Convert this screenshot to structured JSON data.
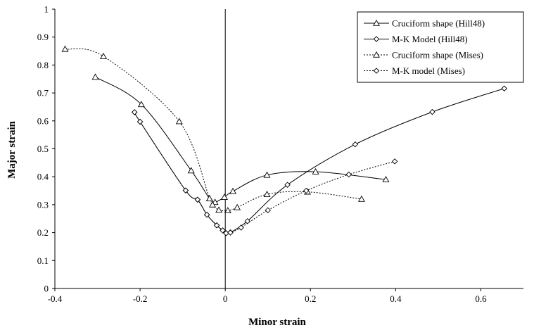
{
  "chart_data": {
    "type": "line",
    "title": "",
    "xlabel": "Minor strain",
    "ylabel": "Major strain",
    "xlim": [
      -0.4,
      0.7
    ],
    "ylim": [
      0,
      1
    ],
    "x_ticks": [
      "-0.4",
      "-0.2",
      "0",
      "0.2",
      "0.4",
      "0.6"
    ],
    "y_ticks": [
      "0",
      "0.1",
      "0.2",
      "0.3",
      "0.4",
      "0.5",
      "0.6",
      "0.7",
      "0.8",
      "0.9",
      "1"
    ],
    "grid": false,
    "legend_position": "top-right",
    "series": [
      {
        "name": "Cruciform shape (Hill48)",
        "line": "solid",
        "marker": "triangle",
        "points": [
          [
            -0.305,
            0.757
          ],
          [
            -0.197,
            0.659
          ],
          [
            -0.08,
            0.422
          ],
          [
            -0.037,
            0.322
          ],
          [
            -0.024,
            0.309
          ],
          [
            -0.002,
            0.327
          ],
          [
            0.018,
            0.348
          ],
          [
            0.098,
            0.406
          ],
          [
            0.212,
            0.418
          ],
          [
            0.377,
            0.39
          ]
        ]
      },
      {
        "name": "M-K Model (Hill48)",
        "line": "solid",
        "marker": "diamond",
        "points": [
          [
            -0.213,
            0.631
          ],
          [
            -0.2,
            0.597
          ],
          [
            -0.093,
            0.351
          ],
          [
            -0.065,
            0.318
          ],
          [
            -0.043,
            0.264
          ],
          [
            -0.02,
            0.226
          ],
          [
            -0.006,
            0.208
          ],
          [
            0.002,
            0.198
          ],
          [
            0.012,
            0.201
          ],
          [
            0.052,
            0.241
          ],
          [
            0.146,
            0.371
          ],
          [
            0.305,
            0.516
          ],
          [
            0.486,
            0.632
          ],
          [
            0.655,
            0.716
          ]
        ]
      },
      {
        "name": "Cruciform shape (Mises)",
        "line": "dotted",
        "marker": "triangle",
        "points": [
          [
            -0.376,
            0.857
          ],
          [
            -0.286,
            0.831
          ],
          [
            -0.108,
            0.598
          ],
          [
            -0.037,
            0.322
          ],
          [
            -0.03,
            0.3
          ],
          [
            -0.015,
            0.281
          ],
          [
            0.006,
            0.279
          ],
          [
            0.028,
            0.29
          ],
          [
            0.098,
            0.337
          ],
          [
            0.193,
            0.346
          ],
          [
            0.32,
            0.32
          ]
        ]
      },
      {
        "name": "M-K model (Mises)",
        "line": "dotted",
        "marker": "diamond",
        "points": [
          [
            -0.213,
            0.631
          ],
          [
            -0.2,
            0.597
          ],
          [
            -0.093,
            0.351
          ],
          [
            -0.065,
            0.318
          ],
          [
            -0.043,
            0.264
          ],
          [
            -0.02,
            0.226
          ],
          [
            -0.006,
            0.208
          ],
          [
            0.002,
            0.198
          ],
          [
            0.012,
            0.2
          ],
          [
            0.037,
            0.218
          ],
          [
            0.1,
            0.28
          ],
          [
            0.19,
            0.35
          ],
          [
            0.29,
            0.408
          ],
          [
            0.398,
            0.455
          ]
        ]
      }
    ]
  }
}
